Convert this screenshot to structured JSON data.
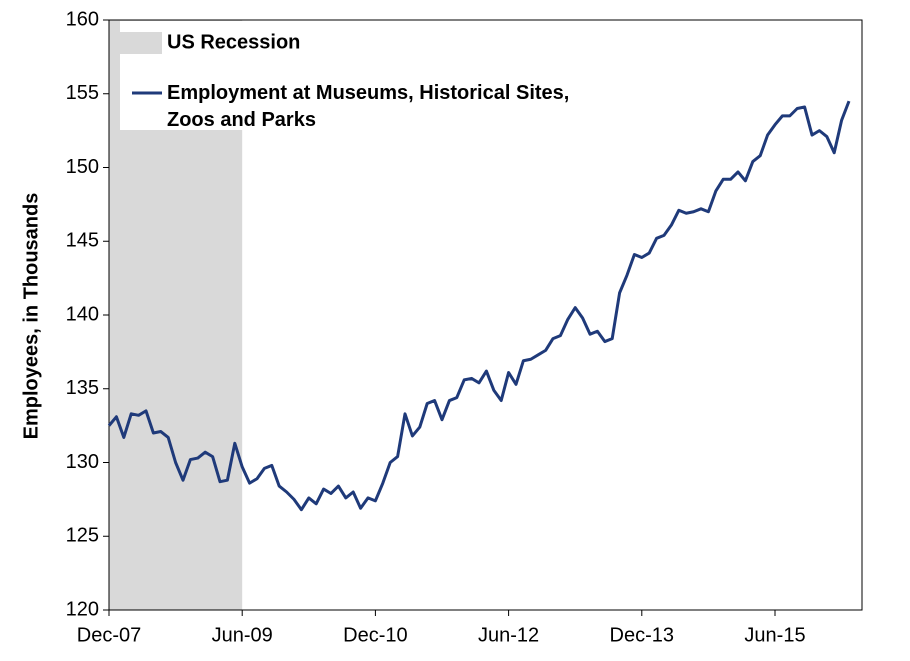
{
  "chart_data": {
    "type": "line",
    "y_label": "Employees, in Thousands",
    "categories": [
      "Dec-07",
      null,
      null,
      null,
      null,
      null,
      null,
      null,
      null,
      null,
      null,
      null,
      null,
      null,
      null,
      null,
      null,
      null,
      "Jun-09",
      null,
      null,
      null,
      null,
      null,
      null,
      null,
      null,
      null,
      null,
      null,
      null,
      null,
      null,
      null,
      null,
      null,
      "Dec-10",
      null,
      null,
      null,
      null,
      null,
      null,
      null,
      null,
      null,
      null,
      null,
      null,
      null,
      null,
      null,
      null,
      null,
      "Jun-12",
      null,
      null,
      null,
      null,
      null,
      null,
      null,
      null,
      null,
      null,
      null,
      null,
      null,
      null,
      null,
      null,
      null,
      "Dec-13",
      null,
      null,
      null,
      null,
      null,
      null,
      null,
      null,
      null,
      null,
      null,
      null,
      null,
      null,
      null,
      null,
      null,
      "Jun-15",
      null,
      null,
      null,
      null,
      null,
      null,
      null,
      null,
      null,
      null
    ],
    "series": [
      {
        "name": "Employment at Museums, Historical Sites, Zoos and Parks",
        "color": "#1f3a7a",
        "values": [
          132.5,
          133.1,
          131.7,
          133.3,
          133.2,
          133.5,
          132.0,
          132.1,
          131.7,
          130.0,
          128.8,
          130.2,
          130.3,
          130.7,
          130.4,
          128.7,
          128.8,
          131.3,
          129.7,
          128.6,
          128.9,
          129.6,
          129.8,
          128.4,
          128.0,
          127.5,
          126.8,
          127.6,
          127.2,
          128.2,
          127.9,
          128.4,
          127.6,
          128.0,
          126.9,
          127.6,
          127.4,
          128.6,
          130.0,
          130.4,
          133.3,
          131.8,
          132.4,
          134.0,
          134.2,
          132.9,
          134.2,
          134.4,
          135.6,
          135.7,
          135.4,
          136.2,
          134.9,
          134.2,
          136.1,
          135.3,
          136.9,
          137.0,
          137.3,
          137.6,
          138.4,
          138.6,
          139.7,
          140.5,
          139.8,
          138.7,
          138.9,
          138.2,
          138.4,
          141.5,
          142.7,
          144.1,
          143.9,
          144.2,
          145.2,
          145.4,
          146.1,
          147.1,
          146.9,
          147.0,
          147.2,
          147.0,
          148.4,
          149.2,
          149.2,
          149.7,
          149.1,
          150.4,
          150.8,
          152.2,
          152.9,
          153.5,
          153.5,
          154.0,
          154.1,
          152.2,
          152.5,
          152.1,
          151.0,
          153.2,
          154.5
        ]
      }
    ],
    "recession": {
      "name": "US Recession",
      "color": "#d9d9d9",
      "start": 0,
      "end": 18
    },
    "ylim": [
      120,
      160
    ],
    "yticks": [
      120,
      125,
      130,
      135,
      140,
      145,
      150,
      155,
      160
    ]
  }
}
